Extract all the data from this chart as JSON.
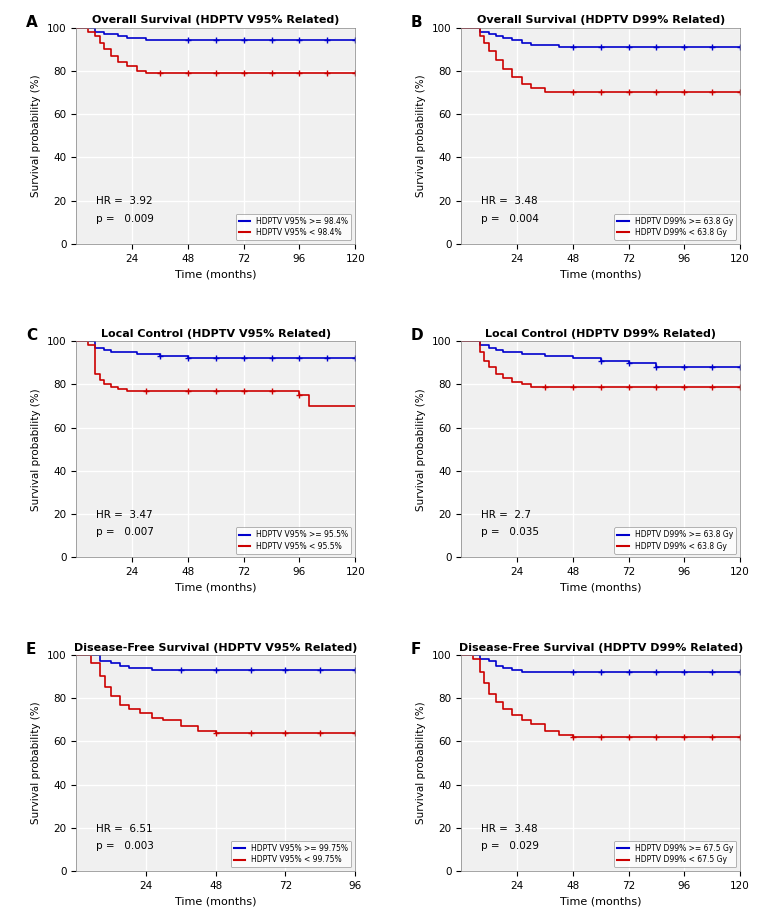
{
  "panels": [
    {
      "label": "A",
      "title": "Overall Survival (HDPTV V95% Related)",
      "hr": "3.92",
      "p": "0.009",
      "legend1": "HDPTV V95% >= 98.4%",
      "legend2": "HDPTV V95% < 98.4%",
      "xmax": 120,
      "blue": {
        "times": [
          0,
          5,
          8,
          12,
          15,
          18,
          22,
          26,
          30,
          36,
          48,
          60,
          72,
          84,
          96,
          108,
          120
        ],
        "surv": [
          100,
          100,
          98,
          97,
          97,
          96,
          95,
          95,
          94,
          94,
          94,
          94,
          94,
          94,
          94,
          94,
          94
        ]
      },
      "red": {
        "times": [
          0,
          5,
          8,
          10,
          12,
          15,
          18,
          22,
          26,
          30,
          36,
          48,
          60,
          72,
          84,
          96,
          108,
          120
        ],
        "surv": [
          100,
          98,
          96,
          93,
          90,
          87,
          84,
          82,
          80,
          79,
          79,
          79,
          79,
          79,
          79,
          79,
          79,
          79
        ]
      },
      "censors_blue": [
        48,
        60,
        72,
        84,
        96,
        108,
        120
      ],
      "censors_blue_y": [
        94,
        94,
        94,
        94,
        94,
        94,
        94
      ],
      "censors_red": [
        36,
        48,
        60,
        72,
        84,
        96,
        108,
        120
      ],
      "censors_red_y": [
        79,
        79,
        79,
        79,
        79,
        79,
        79,
        79
      ]
    },
    {
      "label": "B",
      "title": "Overall Survival (HDPTV D99% Related)",
      "hr": "3.48",
      "p": "0.004",
      "legend1": "HDPTV D99% >= 63.8 Gy",
      "legend2": "HDPTV D99% < 63.8 Gy",
      "xmax": 120,
      "blue": {
        "times": [
          0,
          5,
          8,
          12,
          15,
          18,
          22,
          26,
          30,
          36,
          42,
          48,
          60,
          72,
          84,
          96,
          108,
          120
        ],
        "surv": [
          100,
          100,
          98,
          97,
          96,
          95,
          94,
          93,
          92,
          92,
          91,
          91,
          91,
          91,
          91,
          91,
          91,
          91
        ]
      },
      "red": {
        "times": [
          0,
          5,
          8,
          10,
          12,
          15,
          18,
          22,
          26,
          30,
          36,
          42,
          48,
          60,
          72,
          84,
          96,
          108,
          120
        ],
        "surv": [
          100,
          100,
          96,
          93,
          89,
          85,
          81,
          77,
          74,
          72,
          70,
          70,
          70,
          70,
          70,
          70,
          70,
          70,
          70
        ]
      },
      "censors_blue": [
        48,
        60,
        72,
        84,
        96,
        108,
        120
      ],
      "censors_blue_y": [
        91,
        91,
        91,
        91,
        91,
        91,
        91
      ],
      "censors_red": [
        48,
        60,
        72,
        84,
        96,
        108,
        120
      ],
      "censors_red_y": [
        70,
        70,
        70,
        70,
        70,
        70,
        70
      ]
    },
    {
      "label": "C",
      "title": "Local Control (HDPTV V95% Related)",
      "hr": "3.47",
      "p": "0.007",
      "legend1": "HDPTV V95% >= 95.5%",
      "legend2": "HDPTV V95% < 95.5%",
      "xmax": 120,
      "blue": {
        "times": [
          0,
          5,
          8,
          12,
          15,
          18,
          22,
          26,
          30,
          36,
          48,
          60,
          72,
          84,
          96,
          108,
          120
        ],
        "surv": [
          100,
          100,
          97,
          96,
          95,
          95,
          95,
          94,
          94,
          93,
          92,
          92,
          92,
          92,
          92,
          92,
          92
        ]
      },
      "red": {
        "times": [
          0,
          5,
          8,
          10,
          12,
          15,
          18,
          22,
          26,
          30,
          36,
          48,
          60,
          72,
          84,
          96,
          100,
          108,
          120
        ],
        "surv": [
          100,
          98,
          85,
          82,
          80,
          79,
          78,
          77,
          77,
          77,
          77,
          77,
          77,
          77,
          77,
          75,
          70,
          70,
          70
        ]
      },
      "censors_blue": [
        36,
        48,
        60,
        72,
        84,
        96,
        108,
        120
      ],
      "censors_blue_y": [
        93,
        92,
        92,
        92,
        92,
        92,
        92,
        92
      ],
      "censors_red": [
        30,
        48,
        60,
        72,
        84,
        96
      ],
      "censors_red_y": [
        77,
        77,
        77,
        77,
        77,
        75
      ]
    },
    {
      "label": "D",
      "title": "Local Control (HDPTV D99% Related)",
      "hr": "2.7",
      "p": "0.035",
      "legend1": "HDPTV D99% >= 63.8 Gy",
      "legend2": "HDPTV D99% < 63.8 Gy",
      "xmax": 120,
      "blue": {
        "times": [
          0,
          5,
          8,
          12,
          15,
          18,
          22,
          26,
          30,
          36,
          48,
          60,
          72,
          84,
          96,
          108,
          120
        ],
        "surv": [
          100,
          100,
          98,
          97,
          96,
          95,
          95,
          94,
          94,
          93,
          92,
          91,
          90,
          88,
          88,
          88,
          88
        ]
      },
      "red": {
        "times": [
          0,
          5,
          8,
          10,
          12,
          15,
          18,
          22,
          26,
          30,
          36,
          48,
          60,
          72,
          84,
          96,
          108,
          120
        ],
        "surv": [
          100,
          100,
          95,
          91,
          88,
          85,
          83,
          81,
          80,
          79,
          79,
          79,
          79,
          79,
          79,
          79,
          79,
          79
        ]
      },
      "censors_blue": [
        60,
        72,
        84,
        96,
        108,
        120
      ],
      "censors_blue_y": [
        91,
        90,
        88,
        88,
        88,
        88
      ],
      "censors_red": [
        36,
        48,
        60,
        72,
        84,
        96,
        108,
        120
      ],
      "censors_red_y": [
        79,
        79,
        79,
        79,
        79,
        79,
        79,
        79
      ]
    },
    {
      "label": "E",
      "title": "Disease-Free Survival (HDPTV V95% Related)",
      "hr": "6.51",
      "p": "0.003",
      "legend1": "HDPTV V95% >= 99.75%",
      "legend2": "HDPTV V95% < 99.75%",
      "xmax": 96,
      "blue": {
        "times": [
          0,
          5,
          8,
          12,
          15,
          18,
          22,
          26,
          30,
          36,
          48,
          60,
          72,
          84,
          96
        ],
        "surv": [
          100,
          100,
          97,
          96,
          95,
          94,
          94,
          93,
          93,
          93,
          93,
          93,
          93,
          93,
          93
        ]
      },
      "red": {
        "times": [
          0,
          5,
          8,
          10,
          12,
          15,
          18,
          22,
          26,
          30,
          36,
          42,
          48,
          60,
          72,
          84,
          96
        ],
        "surv": [
          100,
          96,
          90,
          85,
          81,
          77,
          75,
          73,
          71,
          70,
          67,
          65,
          64,
          64,
          64,
          64,
          64
        ]
      },
      "censors_blue": [
        36,
        48,
        60,
        72,
        84,
        96
      ],
      "censors_blue_y": [
        93,
        93,
        93,
        93,
        93,
        93
      ],
      "censors_red": [
        48,
        60,
        72,
        84,
        96
      ],
      "censors_red_y": [
        64,
        64,
        64,
        64,
        64
      ]
    },
    {
      "label": "F",
      "title": "Disease-Free Survival (HDPTV D99% Related)",
      "hr": "3.48",
      "p": "0.029",
      "legend1": "HDPTV D99% >= 67.5 Gy",
      "legend2": "HDPTV D99% < 67.5 Gy",
      "xmax": 120,
      "blue": {
        "times": [
          0,
          5,
          8,
          12,
          15,
          18,
          22,
          26,
          30,
          36,
          48,
          60,
          72,
          84,
          96,
          108,
          120
        ],
        "surv": [
          100,
          100,
          98,
          97,
          95,
          94,
          93,
          92,
          92,
          92,
          92,
          92,
          92,
          92,
          92,
          92,
          92
        ]
      },
      "red": {
        "times": [
          0,
          5,
          8,
          10,
          12,
          15,
          18,
          22,
          26,
          30,
          36,
          42,
          48,
          60,
          72,
          84,
          96,
          108,
          120
        ],
        "surv": [
          100,
          98,
          92,
          87,
          82,
          78,
          75,
          72,
          70,
          68,
          65,
          63,
          62,
          62,
          62,
          62,
          62,
          62,
          62
        ]
      },
      "censors_blue": [
        48,
        60,
        72,
        84,
        96,
        108,
        120
      ],
      "censors_blue_y": [
        92,
        92,
        92,
        92,
        92,
        92,
        92
      ],
      "censors_red": [
        48,
        60,
        72,
        84,
        96,
        108,
        120
      ],
      "censors_red_y": [
        62,
        62,
        62,
        62,
        62,
        62,
        62
      ]
    }
  ],
  "blue_color": "#0000CC",
  "red_color": "#CC0000",
  "bg_color": "#f0f0f0",
  "grid_color": "white",
  "ylabel": "Survival probability (%)",
  "xlabel": "Time (months)"
}
